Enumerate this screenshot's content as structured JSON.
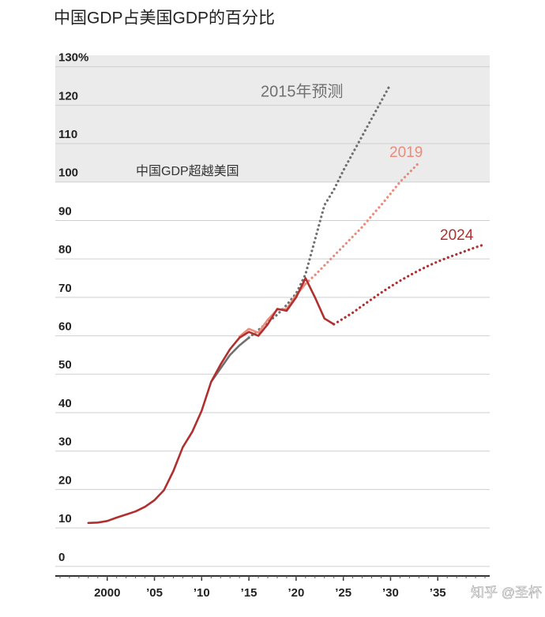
{
  "chart_data": {
    "type": "line",
    "title": "中国GDP占美国GDP的百分比",
    "annotation": "中国GDP超越美国",
    "watermark": "知乎 @圣杯",
    "x": [
      1998,
      1999,
      2000,
      2001,
      2002,
      2003,
      2004,
      2005,
      2006,
      2007,
      2008,
      2009,
      2010,
      2011,
      2012,
      2013,
      2014,
      2015,
      2016,
      2017,
      2018,
      2019,
      2020,
      2021,
      2022,
      2023,
      2024,
      2025,
      2026,
      2027,
      2028,
      2029,
      2030,
      2031,
      2032,
      2033,
      2034,
      2035,
      2036,
      2037,
      2038,
      2039,
      2040
    ],
    "series": [
      {
        "name": "2015年预测",
        "color": "#707070",
        "projection_start": 2015,
        "values": [
          null,
          null,
          null,
          null,
          null,
          null,
          null,
          null,
          null,
          null,
          null,
          null,
          null,
          48,
          51.5,
          55,
          57.5,
          59.5,
          61.5,
          63.5,
          65.5,
          68,
          71,
          76,
          85,
          94,
          98,
          103,
          107.5,
          112,
          116.5,
          121,
          125.5,
          null,
          null,
          null,
          null,
          null,
          null,
          null,
          null,
          null,
          null
        ]
      },
      {
        "name": "2019",
        "color": "#ee8a7a",
        "projection_start": 2021,
        "values": [
          null,
          null,
          null,
          null,
          null,
          null,
          null,
          null,
          null,
          null,
          null,
          null,
          null,
          null,
          null,
          null,
          59.8,
          61.8,
          60.8,
          64.2,
          66.8,
          67,
          70.5,
          73.5,
          75.8,
          78.3,
          80.8,
          83.3,
          85.8,
          88.3,
          91.2,
          94,
          97,
          100,
          102.5,
          105,
          null,
          null,
          null,
          null,
          null,
          null,
          null
        ]
      },
      {
        "name": "2024",
        "color": "#b03030",
        "projection_start": 2024,
        "values": [
          11.3,
          11.4,
          11.8,
          12.7,
          13.5,
          14.3,
          15.5,
          17.2,
          19.8,
          24.8,
          31,
          35,
          40.5,
          48,
          52.5,
          56.5,
          59.5,
          61,
          60,
          63,
          67,
          66.5,
          70,
          75,
          70,
          64.5,
          63,
          64.5,
          66,
          67.8,
          69.5,
          71.2,
          72.8,
          74.3,
          75.7,
          77,
          78.2,
          79.3,
          80.3,
          81.2,
          82.1,
          83,
          83.8
        ]
      }
    ],
    "xlim": [
      1994.5,
      2040.5
    ],
    "xticks": [
      2000,
      {
        "value": 2005,
        "label": "’05"
      },
      {
        "value": 2010,
        "label": "’10"
      },
      {
        "value": 2015,
        "label": "’15"
      },
      {
        "value": 2020,
        "label": "’20"
      },
      {
        "value": 2025,
        "label": "’25"
      },
      {
        "value": 2030,
        "label": "’30"
      },
      {
        "value": 2035,
        "label": "’35"
      }
    ],
    "ylim": [
      -2.5,
      133
    ],
    "yticks": [
      0,
      10,
      20,
      30,
      40,
      50,
      60,
      70,
      80,
      90,
      100,
      110,
      120,
      {
        "value": 130,
        "label": "130%"
      }
    ],
    "shade_from": 100,
    "grid": true
  }
}
